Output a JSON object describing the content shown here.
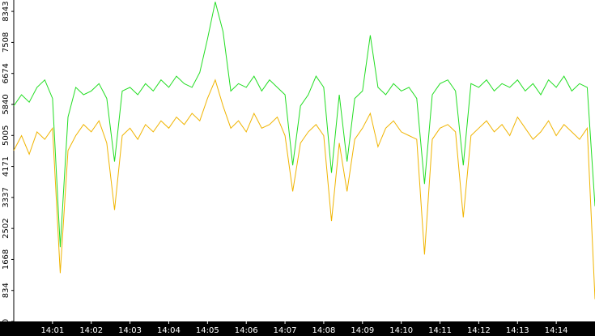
{
  "chart_data": {
    "type": "line",
    "x": [
      0,
      0.2,
      0.4,
      0.6,
      0.8,
      1.0,
      1.2,
      1.4,
      1.6,
      1.8,
      2.0,
      2.2,
      2.4,
      2.6,
      2.8,
      3.0,
      3.2,
      3.4,
      3.6,
      3.8,
      4.0,
      4.2,
      4.4,
      4.6,
      4.8,
      5.0,
      5.2,
      5.4,
      5.6,
      5.8,
      6.0,
      6.2,
      6.4,
      6.6,
      6.8,
      7.0,
      7.2,
      7.4,
      7.6,
      7.8,
      8.0,
      8.2,
      8.4,
      8.6,
      8.8,
      9.0,
      9.2,
      9.4,
      9.6,
      9.8,
      10.0,
      10.2,
      10.4,
      10.6,
      10.8,
      11.0,
      11.2,
      11.4,
      11.6,
      11.8,
      12.0,
      12.2,
      12.4,
      12.6,
      12.8,
      13.0,
      13.2,
      13.4,
      13.6,
      13.8,
      14.0,
      14.2,
      14.4,
      14.6,
      14.8,
      15.0
    ],
    "series": [
      {
        "color": "#22dd22",
        "values": [
          5800,
          6100,
          5900,
          6300,
          6500,
          6000,
          2000,
          5500,
          6300,
          6100,
          6200,
          6400,
          6000,
          4300,
          6200,
          6300,
          6100,
          6400,
          6200,
          6500,
          6300,
          6600,
          6400,
          6300,
          6700,
          7600,
          8600,
          7800,
          6200,
          6400,
          6300,
          6600,
          6200,
          6500,
          6300,
          6100,
          4200,
          5800,
          6100,
          6600,
          6300,
          4000,
          6100,
          4300,
          6000,
          6200,
          7700,
          6300,
          6100,
          6400,
          6200,
          6300,
          6000,
          3700,
          6100,
          6400,
          6500,
          6200,
          4200,
          6400,
          6300,
          6500,
          6200,
          6400,
          6300,
          6500,
          6200,
          6400,
          6100,
          6500,
          6300,
          6600,
          6200,
          6400,
          6300,
          3100
        ]
      },
      {
        "color": "#f0b400",
        "values": [
          4600,
          5000,
          4500,
          5100,
          4900,
          5200,
          1300,
          4600,
          5000,
          5300,
          5100,
          5400,
          4800,
          3000,
          5000,
          5200,
          4900,
          5300,
          5100,
          5400,
          5200,
          5500,
          5300,
          5600,
          5400,
          6000,
          6500,
          5800,
          5200,
          5400,
          5100,
          5600,
          5200,
          5300,
          5500,
          5000,
          3500,
          4800,
          5100,
          5300,
          5000,
          2700,
          4800,
          3500,
          4900,
          5200,
          5600,
          4700,
          5200,
          5400,
          5100,
          5000,
          4900,
          1800,
          4900,
          5200,
          5300,
          5100,
          2800,
          5000,
          5200,
          5400,
          5100,
          5300,
          5000,
          5500,
          5200,
          4900,
          5100,
          5400,
          5000,
          5300,
          5100,
          4900,
          5200,
          600
        ]
      }
    ],
    "xlim": [
      0,
      15
    ],
    "xticks": [
      {
        "value": 1,
        "label": "14:01"
      },
      {
        "value": 2,
        "label": "14:02"
      },
      {
        "value": 3,
        "label": "14:03"
      },
      {
        "value": 4,
        "label": "14:04"
      },
      {
        "value": 5,
        "label": "14:05"
      },
      {
        "value": 6,
        "label": "14:06"
      },
      {
        "value": 7,
        "label": "14:07"
      },
      {
        "value": 8,
        "label": "14:08"
      },
      {
        "value": 9,
        "label": "14:09"
      },
      {
        "value": 10,
        "label": "14:10"
      },
      {
        "value": 11,
        "label": "14:11"
      },
      {
        "value": 12,
        "label": "14:12"
      },
      {
        "value": 13,
        "label": "14:13"
      },
      {
        "value": 14,
        "label": "14:14"
      }
    ],
    "ylim": [
      0,
      8650
    ],
    "yticks": [
      0,
      834,
      1668,
      2502,
      3337,
      4171,
      5005,
      5840,
      6674,
      7508,
      8343
    ]
  }
}
